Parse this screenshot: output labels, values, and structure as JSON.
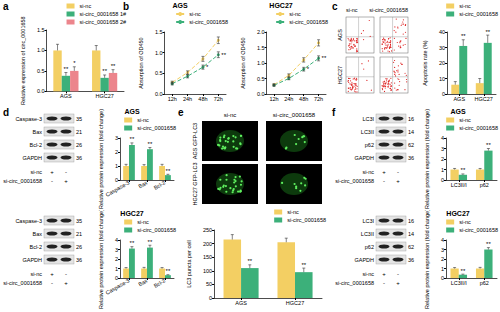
{
  "panel_labels": [
    "a",
    "b",
    "c",
    "d",
    "e",
    "f"
  ],
  "chart_data": [
    {
      "type": "bar",
      "ylabel": "Relative expression of circ_0001658",
      "categories": [
        "AGS",
        "HGC27"
      ],
      "series": [
        {
          "name": "si-nc",
          "color": "#f3cf63",
          "values": [
            1.0,
            1.0
          ],
          "errors": [
            0.15,
            0.12
          ]
        },
        {
          "name": "si-circ_0001658 1#",
          "color": "#3cb07a",
          "values": [
            0.38,
            0.33
          ],
          "errors": [
            0.08,
            0.07
          ],
          "annotations": [
            "**",
            "**"
          ]
        },
        {
          "name": "si-circ_0001658 2#",
          "color": "#ec858c",
          "values": [
            0.5,
            0.45
          ],
          "errors": [
            0.1,
            0.08
          ],
          "annotations": [
            "*",
            "**"
          ]
        }
      ],
      "ylim": [
        0,
        1.5
      ],
      "yticks": [
        {
          "value": 0,
          "label": "0.0"
        },
        {
          "value": 0.5,
          "label": "0.5"
        },
        {
          "value": 1,
          "label": "1.0"
        },
        {
          "value": 1.5,
          "label": "1.5"
        }
      ],
      "legend": "upper right"
    },
    {
      "type": "line",
      "title": "AGS",
      "ylabel": "Absorption of OD450",
      "categories": [
        "12h",
        "24h",
        "48h",
        "72h"
      ],
      "series": [
        {
          "name": "si-nc",
          "color": "#f3cf63",
          "values": [
            0.28,
            0.52,
            0.85,
            1.3
          ],
          "errors": [
            0.03,
            0.04,
            0.06,
            0.08
          ],
          "marker": "circle",
          "line_style": "dashed"
        },
        {
          "name": "si-circ_0001658",
          "color": "#3cb07a",
          "values": [
            0.25,
            0.43,
            0.65,
            0.95
          ],
          "errors": [
            0.03,
            0.04,
            0.05,
            0.07
          ],
          "annotations": [
            null,
            null,
            "*",
            "**"
          ],
          "marker": "circle",
          "line_style": "dashed"
        }
      ],
      "ylim": [
        0,
        1.5
      ],
      "yticks": [
        {
          "value": 0,
          "label": "0.0"
        },
        {
          "value": 0.5,
          "label": "0.5"
        },
        {
          "value": 1,
          "label": "1.0"
        },
        {
          "value": 1.5,
          "label": "1.5"
        }
      ],
      "legend": "upper right"
    },
    {
      "type": "line",
      "title": "HGC27",
      "ylabel": "Absorption of OD450",
      "categories": [
        "12h",
        "24h",
        "48h",
        "72h"
      ],
      "series": [
        {
          "name": "si-nc",
          "color": "#f3cf63",
          "values": [
            0.3,
            0.6,
            1.1,
            1.65
          ],
          "errors": [
            0.03,
            0.05,
            0.07,
            0.1
          ],
          "marker": "circle",
          "line_style": "dashed"
        },
        {
          "name": "si-circ_0001658",
          "color": "#3cb07a",
          "values": [
            0.28,
            0.5,
            0.8,
            1.15
          ],
          "errors": [
            0.03,
            0.04,
            0.06,
            0.08
          ],
          "annotations": [
            null,
            null,
            "*",
            "**"
          ],
          "marker": "circle",
          "line_style": "dashed"
        }
      ],
      "ylim": [
        0,
        2
      ],
      "yticks": [
        {
          "value": 0,
          "label": "0.0"
        },
        {
          "value": 0.5,
          "label": "0.5"
        },
        {
          "value": 1,
          "label": "1.0"
        },
        {
          "value": 1.5,
          "label": "1.5"
        },
        {
          "value": 2,
          "label": "2.0"
        }
      ],
      "legend": "upper right"
    },
    {
      "type": "bar",
      "ylabel": "Apoptosis rate (%)",
      "categories": [
        "AGS",
        "HGC27"
      ],
      "series": [
        {
          "name": "si-nc",
          "color": "#f3cf63",
          "values": [
            6,
            7
          ],
          "errors": [
            2,
            3
          ]
        },
        {
          "name": "si-circ_0001658",
          "color": "#3cb07a",
          "values": [
            31,
            33
          ],
          "errors": [
            4,
            5
          ],
          "annotations": [
            "**",
            "**"
          ]
        }
      ],
      "ylim": [
        0,
        40
      ],
      "yticks": [
        0,
        10,
        20,
        30,
        40
      ],
      "legend": "upper right"
    },
    {
      "type": "bar",
      "title": "AGS",
      "ylabel": "Relative protein expression (fold change)",
      "categories": [
        "Caspase-3",
        "Bax",
        "Bcl-2"
      ],
      "series": [
        {
          "name": "si-nc",
          "color": "#f3cf63",
          "values": [
            1.0,
            1.0,
            1.0
          ],
          "errors": [
            0.12,
            0.1,
            0.12
          ]
        },
        {
          "name": "si-circ_0001658",
          "color": "#3cb07a",
          "values": [
            2.5,
            2.2,
            0.35
          ],
          "errors": [
            0.15,
            0.12,
            0.06
          ],
          "annotations": [
            "**",
            "**",
            "**"
          ]
        }
      ],
      "ylim": [
        0,
        3
      ],
      "yticks": [
        0,
        1,
        2,
        3
      ],
      "legend": "upper right"
    },
    {
      "type": "bar",
      "title": "HGC27",
      "ylabel": "Relative protein expression (fold change)",
      "categories": [
        "Caspase-3",
        "Bax",
        "Bcl-2"
      ],
      "series": [
        {
          "name": "si-nc",
          "color": "#f3cf63",
          "values": [
            1.0,
            1.0,
            1.0
          ],
          "errors": [
            0.1,
            0.12,
            0.1
          ]
        },
        {
          "name": "si-circ_0001658",
          "color": "#3cb07a",
          "values": [
            3.1,
            3.2,
            0.3
          ],
          "errors": [
            0.2,
            0.25,
            0.05
          ],
          "annotations": [
            "**",
            "**",
            "**"
          ]
        }
      ],
      "ylim": [
        0,
        4
      ],
      "yticks": [
        0,
        1,
        2,
        3,
        4
      ],
      "legend": "upper right"
    },
    {
      "type": "bar",
      "ylabel": "LC3 puncta per cell",
      "categories": [
        "AGS",
        "HGC27"
      ],
      "series": [
        {
          "name": "si-nc",
          "color": "#f3cf63",
          "values": [
            215,
            205
          ],
          "errors": [
            18,
            15
          ]
        },
        {
          "name": "si-circ_0001658",
          "color": "#3cb07a",
          "values": [
            110,
            95
          ],
          "errors": [
            12,
            15
          ],
          "annotations": [
            "**",
            "**"
          ]
        }
      ],
      "ylim": [
        0,
        250
      ],
      "yticks": [
        0,
        50,
        100,
        150,
        200,
        250
      ],
      "legend": "upper right"
    },
    {
      "type": "bar",
      "title": "AGS",
      "ylabel": "Relative protein expression (fold change)",
      "categories": [
        "LC3II/I",
        "p62"
      ],
      "series": [
        {
          "name": "si-nc",
          "color": "#f3cf63",
          "values": [
            1.0,
            1.0
          ],
          "errors": [
            0.1,
            0.1
          ]
        },
        {
          "name": "si-circ_0001658",
          "color": "#3cb07a",
          "values": [
            0.5,
            2.8
          ],
          "errors": [
            0.08,
            0.2
          ],
          "annotations": [
            "**",
            "**"
          ]
        }
      ],
      "ylim": [
        0,
        4
      ],
      "yticks": [
        0,
        1,
        2,
        3,
        4
      ],
      "legend": "upper right"
    },
    {
      "type": "bar",
      "title": "HGC27",
      "ylabel": "Relative protein expression (fold change)",
      "categories": [
        "LC3II/I",
        "p62"
      ],
      "series": [
        {
          "name": "si-nc",
          "color": "#f3cf63",
          "values": [
            1.0,
            1.0
          ],
          "errors": [
            0.1,
            0.12
          ]
        },
        {
          "name": "si-circ_0001658",
          "color": "#3cb07a",
          "values": [
            0.35,
            3.0
          ],
          "errors": [
            0.06,
            0.2
          ],
          "annotations": [
            "**",
            "**"
          ]
        }
      ],
      "ylim": [
        0,
        4
      ],
      "yticks": [
        0,
        1,
        2,
        3,
        4
      ],
      "legend": "upper right"
    }
  ],
  "flow_images": {
    "columns": [
      "si-nc",
      "si-circ_0001658"
    ],
    "rows": [
      "AGS",
      "HGC27"
    ]
  },
  "gfp_images": {
    "columns": [
      "si-nc",
      "si-circ_0001658"
    ],
    "rows": [
      "AGS GFP-LC3",
      "HGC27 GFP-LC3"
    ]
  },
  "blots": [
    {
      "bands": [
        {
          "label": "Caspase-3",
          "kda": 35
        },
        {
          "label": "Bax",
          "kda": 21
        },
        {
          "label": "Bcl-2",
          "kda": 26
        },
        {
          "label": "GAPDH",
          "kda": 36
        }
      ],
      "treatments": [
        {
          "label": "si-nc",
          "marks": [
            "+",
            "-"
          ]
        },
        {
          "label": "si-circ_0001658",
          "marks": [
            "-",
            "+"
          ]
        }
      ]
    },
    {
      "bands": [
        {
          "label": "Caspase-3",
          "kda": 35
        },
        {
          "label": "Bax",
          "kda": 21
        },
        {
          "label": "Bcl-2",
          "kda": 26
        },
        {
          "label": "GAPDH",
          "kda": 36
        }
      ],
      "treatments": [
        {
          "label": "si-nc",
          "marks": [
            "+",
            "-"
          ]
        },
        {
          "label": "si-circ_0001658",
          "marks": [
            "-",
            "+"
          ]
        }
      ]
    },
    {
      "bands": [
        {
          "label": "LC3I",
          "kda": 16
        },
        {
          "label": "LC3II",
          "kda": 14
        },
        {
          "label": "p62",
          "kda": 62
        },
        {
          "label": "GAPDH",
          "kda": 36
        }
      ],
      "treatments": [
        {
          "label": "si-nc",
          "marks": [
            "+",
            "-"
          ]
        },
        {
          "label": "si-circ_0001658",
          "marks": [
            "-",
            "+"
          ]
        }
      ]
    },
    {
      "bands": [
        {
          "label": "LC3I",
          "kda": 16
        },
        {
          "label": "LC3II",
          "kda": 14
        },
        {
          "label": "p62",
          "kda": 62
        },
        {
          "label": "GAPDH",
          "kda": 36
        }
      ],
      "treatments": [
        {
          "label": "si-nc",
          "marks": [
            "+",
            "-"
          ]
        },
        {
          "label": "si-circ_0001658",
          "marks": [
            "-",
            "+"
          ]
        }
      ]
    }
  ]
}
